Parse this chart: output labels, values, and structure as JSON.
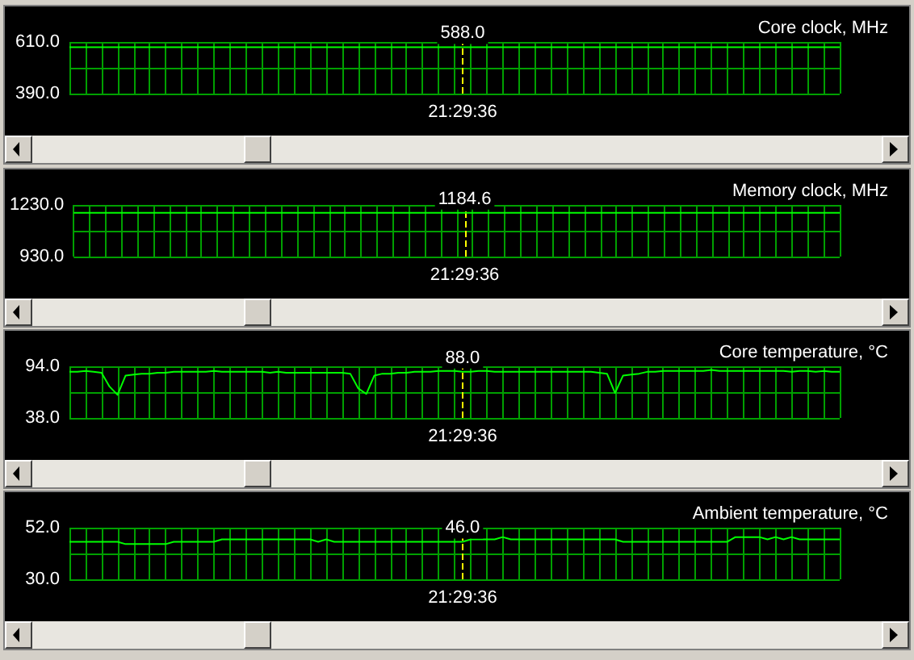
{
  "chart_data": [
    {
      "type": "line",
      "title": "Core clock, MHz",
      "categories": [
        null,
        null,
        null,
        null,
        null,
        null,
        null,
        null,
        null,
        null,
        null,
        null,
        null,
        null,
        null,
        null,
        null,
        null,
        null,
        null,
        null,
        null,
        null,
        null,
        null,
        null,
        null,
        null,
        null,
        null,
        null,
        null,
        null,
        null,
        null,
        null,
        null,
        null,
        null,
        null,
        null,
        null,
        null,
        null,
        null,
        null,
        null,
        null,
        null,
        null,
        null,
        null,
        null,
        null,
        null,
        null,
        null,
        null,
        null,
        null,
        null,
        null,
        null,
        null,
        null,
        null,
        null,
        null,
        null,
        null,
        null,
        null,
        null,
        null,
        null,
        null,
        null,
        null,
        null,
        null,
        null,
        null,
        null,
        null,
        null,
        null,
        null,
        null,
        null,
        null,
        null,
        null,
        null,
        null,
        null,
        null,
        null
      ],
      "series": [
        {
          "color": "#00ff00",
          "values": [
            588,
            588,
            588,
            588,
            588,
            588,
            588,
            588,
            588,
            588,
            588,
            588,
            588,
            588,
            588,
            588,
            588,
            588,
            588,
            588,
            588,
            588,
            588,
            588,
            588,
            588,
            588,
            588,
            588,
            588,
            588,
            588,
            588,
            588,
            588,
            588,
            588,
            588,
            588,
            588,
            588,
            588,
            588,
            588,
            588,
            588,
            588,
            588,
            588,
            588,
            588,
            588,
            588,
            588,
            588,
            588,
            588,
            588,
            588,
            588,
            588,
            588,
            588,
            588,
            588,
            588,
            588,
            588,
            588,
            588,
            588,
            588,
            588,
            588,
            588,
            588,
            588,
            588,
            588,
            588,
            588,
            588,
            588,
            588,
            588,
            588,
            588,
            588,
            588,
            588,
            588,
            588,
            588,
            588,
            588,
            588,
            588
          ],
          "value_labels": [
            null,
            null,
            null,
            null,
            null,
            null,
            null,
            null,
            null,
            null,
            null,
            null,
            null,
            null,
            null,
            null,
            null,
            null,
            null,
            null,
            null,
            null,
            null,
            null,
            null,
            null,
            null,
            null,
            null,
            null,
            null,
            null,
            null,
            null,
            null,
            null,
            null,
            null,
            null,
            null,
            null,
            null,
            null,
            null,
            null,
            null,
            null,
            null,
            null,
            "588.0",
            null,
            null,
            null,
            null,
            null,
            null,
            null,
            null,
            null,
            null,
            null,
            null,
            null,
            null,
            null,
            null,
            null,
            null,
            null,
            null,
            null,
            null,
            null,
            null,
            null,
            null,
            null,
            null,
            null,
            null,
            null,
            null,
            null,
            null,
            null,
            null,
            null,
            null,
            null,
            null,
            null,
            null,
            null,
            null,
            null,
            null,
            null
          ]
        }
      ],
      "ylim": [
        390,
        610
      ],
      "yticks": [
        {
          "value": 390,
          "label": "390.0"
        },
        {
          "value": 500,
          "label": null
        },
        {
          "value": 610,
          "label": "610.0"
        }
      ],
      "annotations": [
        "21:29:36"
      ],
      "grid": true,
      "tick_labels": "y"
    },
    {
      "type": "line",
      "title": "Memory clock, MHz",
      "categories": [
        null,
        null,
        null,
        null,
        null,
        null,
        null,
        null,
        null,
        null,
        null,
        null,
        null,
        null,
        null,
        null,
        null,
        null,
        null,
        null,
        null,
        null,
        null,
        null,
        null,
        null,
        null,
        null,
        null,
        null,
        null,
        null,
        null,
        null,
        null,
        null,
        null,
        null,
        null,
        null,
        null,
        null,
        null,
        null,
        null,
        null,
        null,
        null,
        null,
        null,
        null,
        null,
        null,
        null,
        null,
        null,
        null,
        null,
        null,
        null,
        null,
        null,
        null,
        null,
        null,
        null,
        null,
        null,
        null,
        null,
        null,
        null,
        null,
        null,
        null,
        null,
        null,
        null,
        null,
        null,
        null,
        null,
        null,
        null,
        null,
        null,
        null,
        null,
        null,
        null,
        null,
        null,
        null,
        null,
        null,
        null,
        null
      ],
      "series": [
        {
          "color": "#00ff00",
          "values": [
            1184.6,
            1184.6,
            1184.6,
            1184.6,
            1184.6,
            1184.6,
            1184.6,
            1184.6,
            1184.6,
            1184.6,
            1184.6,
            1184.6,
            1184.6,
            1184.6,
            1184.6,
            1184.6,
            1184.6,
            1184.6,
            1184.6,
            1184.6,
            1184.6,
            1184.6,
            1184.6,
            1184.6,
            1184.6,
            1184.6,
            1184.6,
            1184.6,
            1184.6,
            1184.6,
            1184.6,
            1184.6,
            1184.6,
            1184.6,
            1184.6,
            1184.6,
            1184.6,
            1184.6,
            1184.6,
            1184.6,
            1184.6,
            1184.6,
            1184.6,
            1184.6,
            1184.6,
            1184.6,
            1184.6,
            1184.6,
            1184.6,
            1184.6,
            1184.6,
            1184.6,
            1184.6,
            1184.6,
            1184.6,
            1184.6,
            1184.6,
            1184.6,
            1184.6,
            1184.6,
            1184.6,
            1184.6,
            1184.6,
            1184.6,
            1184.6,
            1184.6,
            1184.6,
            1184.6,
            1184.6,
            1184.6,
            1184.6,
            1184.6,
            1184.6,
            1184.6,
            1184.6,
            1184.6,
            1184.6,
            1184.6,
            1184.6,
            1184.6,
            1184.6,
            1184.6,
            1184.6,
            1184.6,
            1184.6,
            1184.6,
            1184.6,
            1184.6,
            1184.6,
            1184.6,
            1184.6,
            1184.6,
            1184.6,
            1184.6,
            1184.6,
            1184.6,
            1184.6
          ],
          "value_labels": [
            null,
            null,
            null,
            null,
            null,
            null,
            null,
            null,
            null,
            null,
            null,
            null,
            null,
            null,
            null,
            null,
            null,
            null,
            null,
            null,
            null,
            null,
            null,
            null,
            null,
            null,
            null,
            null,
            null,
            null,
            null,
            null,
            null,
            null,
            null,
            null,
            null,
            null,
            null,
            null,
            null,
            null,
            null,
            null,
            null,
            null,
            null,
            null,
            null,
            "1184.6",
            null,
            null,
            null,
            null,
            null,
            null,
            null,
            null,
            null,
            null,
            null,
            null,
            null,
            null,
            null,
            null,
            null,
            null,
            null,
            null,
            null,
            null,
            null,
            null,
            null,
            null,
            null,
            null,
            null,
            null,
            null,
            null,
            null,
            null,
            null,
            null,
            null,
            null,
            null,
            null,
            null,
            null,
            null,
            null,
            null,
            null,
            null
          ]
        }
      ],
      "ylim": [
        930,
        1230
      ],
      "yticks": [
        {
          "value": 930,
          "label": "930.0"
        },
        {
          "value": 1080,
          "label": null
        },
        {
          "value": 1230,
          "label": "1230.0"
        }
      ],
      "annotations": [
        "21:29:36"
      ],
      "grid": true,
      "tick_labels": "y"
    },
    {
      "type": "line",
      "title": "Core temperature, °C",
      "categories": [
        null,
        null,
        null,
        null,
        null,
        null,
        null,
        null,
        null,
        null,
        null,
        null,
        null,
        null,
        null,
        null,
        null,
        null,
        null,
        null,
        null,
        null,
        null,
        null,
        null,
        null,
        null,
        null,
        null,
        null,
        null,
        null,
        null,
        null,
        null,
        null,
        null,
        null,
        null,
        null,
        null,
        null,
        null,
        null,
        null,
        null,
        null,
        null,
        null,
        null,
        null,
        null,
        null,
        null,
        null,
        null,
        null,
        null,
        null,
        null,
        null,
        null,
        null,
        null,
        null,
        null,
        null,
        null,
        null,
        null,
        null,
        null,
        null,
        null,
        null,
        null,
        null,
        null,
        null,
        null,
        null,
        null,
        null,
        null,
        null,
        null,
        null,
        null,
        null,
        null,
        null,
        null,
        null,
        null,
        null,
        null,
        null
      ],
      "series": [
        {
          "color": "#00ff00",
          "values": [
            88,
            88,
            89,
            88,
            87,
            72,
            63,
            84,
            85,
            86,
            86,
            87,
            87,
            88,
            88,
            88,
            88,
            88,
            89,
            88,
            88,
            88,
            88,
            88,
            88,
            87,
            88,
            87,
            87,
            87,
            87,
            87,
            87,
            87,
            87,
            86,
            70,
            64,
            84,
            86,
            86,
            87,
            87,
            88,
            88,
            88,
            89,
            89,
            89,
            88,
            88,
            89,
            89,
            88,
            88,
            88,
            88,
            88,
            88,
            88,
            88,
            88,
            88,
            88,
            88,
            88,
            87,
            86,
            65,
            84,
            85,
            86,
            88,
            88,
            89,
            89,
            89,
            89,
            89,
            89,
            90,
            89,
            89,
            89,
            89,
            89,
            89,
            89,
            89,
            89,
            88,
            89,
            89,
            88,
            89,
            88,
            88
          ],
          "value_labels": [
            null,
            null,
            null,
            null,
            null,
            null,
            null,
            null,
            null,
            null,
            null,
            null,
            null,
            null,
            null,
            null,
            null,
            null,
            null,
            null,
            null,
            null,
            null,
            null,
            null,
            null,
            null,
            null,
            null,
            null,
            null,
            null,
            null,
            null,
            null,
            null,
            null,
            null,
            null,
            null,
            null,
            null,
            null,
            null,
            null,
            null,
            null,
            null,
            null,
            "88.0",
            null,
            null,
            null,
            null,
            null,
            null,
            null,
            null,
            null,
            null,
            null,
            null,
            null,
            null,
            null,
            null,
            null,
            null,
            null,
            null,
            null,
            null,
            null,
            null,
            null,
            null,
            null,
            null,
            null,
            null,
            null,
            null,
            null,
            null,
            null,
            null,
            null,
            null,
            null,
            null,
            null,
            null,
            null,
            null,
            null,
            null,
            null
          ]
        }
      ],
      "ylim": [
        38,
        94
      ],
      "yticks": [
        {
          "value": 38,
          "label": "38.0"
        },
        {
          "value": 66,
          "label": null
        },
        {
          "value": 94,
          "label": "94.0"
        }
      ],
      "annotations": [
        "21:29:36"
      ],
      "grid": true,
      "tick_labels": "y"
    },
    {
      "type": "line",
      "title": "Ambient temperature, °C",
      "categories": [
        null,
        null,
        null,
        null,
        null,
        null,
        null,
        null,
        null,
        null,
        null,
        null,
        null,
        null,
        null,
        null,
        null,
        null,
        null,
        null,
        null,
        null,
        null,
        null,
        null,
        null,
        null,
        null,
        null,
        null,
        null,
        null,
        null,
        null,
        null,
        null,
        null,
        null,
        null,
        null,
        null,
        null,
        null,
        null,
        null,
        null,
        null,
        null,
        null,
        null,
        null,
        null,
        null,
        null,
        null,
        null,
        null,
        null,
        null,
        null,
        null,
        null,
        null,
        null,
        null,
        null,
        null,
        null,
        null,
        null,
        null,
        null,
        null,
        null,
        null,
        null,
        null,
        null,
        null,
        null,
        null,
        null,
        null,
        null,
        null,
        null,
        null,
        null,
        null,
        null,
        null,
        null,
        null,
        null,
        null,
        null,
        null
      ],
      "series": [
        {
          "color": "#00ff00",
          "values": [
            46,
            46,
            46,
            46,
            46,
            46,
            46,
            45,
            45,
            45,
            45,
            45,
            45,
            46,
            46,
            46,
            46,
            46,
            46,
            47,
            47,
            47,
            47,
            47,
            47,
            47,
            47,
            47,
            47,
            47,
            47,
            46,
            47,
            46,
            46,
            46,
            46,
            46,
            46,
            46,
            46,
            46,
            46,
            46,
            46,
            46,
            46,
            46,
            46,
            46,
            47,
            47,
            47,
            47,
            48,
            47,
            47,
            47,
            47,
            47,
            47,
            47,
            47,
            47,
            47,
            47,
            47,
            47,
            47,
            46,
            46,
            46,
            46,
            46,
            46,
            46,
            46,
            46,
            46,
            46,
            46,
            46,
            46,
            48,
            48,
            48,
            48,
            47,
            48,
            47,
            48,
            47,
            47,
            47,
            47,
            47,
            47
          ],
          "value_labels": [
            null,
            null,
            null,
            null,
            null,
            null,
            null,
            null,
            null,
            null,
            null,
            null,
            null,
            null,
            null,
            null,
            null,
            null,
            null,
            null,
            null,
            null,
            null,
            null,
            null,
            null,
            null,
            null,
            null,
            null,
            null,
            null,
            null,
            null,
            null,
            null,
            null,
            null,
            null,
            null,
            null,
            null,
            null,
            null,
            null,
            null,
            null,
            null,
            null,
            "46.0",
            null,
            null,
            null,
            null,
            null,
            null,
            null,
            null,
            null,
            null,
            null,
            null,
            null,
            null,
            null,
            null,
            null,
            null,
            null,
            null,
            null,
            null,
            null,
            null,
            null,
            null,
            null,
            null,
            null,
            null,
            null,
            null,
            null,
            null,
            null,
            null,
            null,
            null,
            null,
            null,
            null,
            null,
            null,
            null,
            null,
            null,
            null
          ]
        }
      ],
      "ylim": [
        30,
        52
      ],
      "yticks": [
        {
          "value": 30,
          "label": "30.0"
        },
        {
          "value": 41,
          "label": null
        },
        {
          "value": 52,
          "label": "52.0"
        }
      ],
      "annotations": [
        "21:29:36"
      ],
      "grid": true,
      "tick_labels": "y"
    }
  ]
}
